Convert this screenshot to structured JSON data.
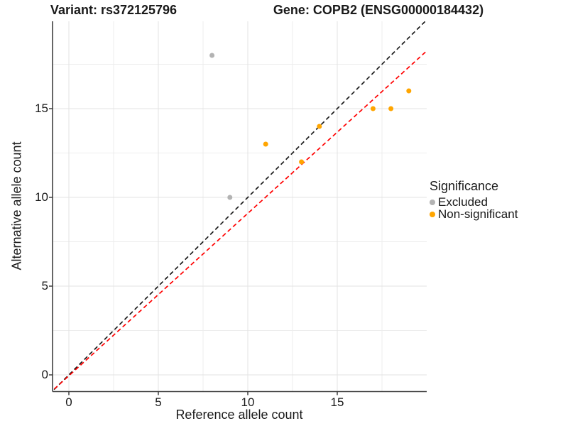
{
  "titles": {
    "variant": "Variant: rs372125796",
    "gene": "Gene: COPB2 (ENSG00000184432)"
  },
  "chart_data": {
    "type": "scatter",
    "xlabel": "Reference allele count",
    "ylabel": "Alternative allele count",
    "xlim": [
      -0.91,
      20
    ],
    "ylim": [
      -0.92,
      20
    ],
    "x_ticks": [
      0,
      5,
      10,
      15
    ],
    "y_ticks": [
      0,
      5,
      10,
      15
    ],
    "x_minor": [
      2.5,
      7.5,
      12.5,
      17.5
    ],
    "y_minor": [
      2.5,
      7.5,
      12.5,
      17.5
    ],
    "grid": "on",
    "legend_position": "right",
    "legend": {
      "title": "Significance",
      "items": [
        {
          "label": "Excluded",
          "color": "#b3b3b3"
        },
        {
          "label": "Non-significant",
          "color": "#ffa500"
        }
      ]
    },
    "series": [
      {
        "name": "Excluded",
        "color": "#b3b3b3",
        "points": [
          [
            8,
            18
          ],
          [
            9,
            10
          ]
        ]
      },
      {
        "name": "Non-significant",
        "color": "#ffa500",
        "points": [
          [
            11,
            13
          ],
          [
            13,
            12
          ],
          [
            14,
            14
          ],
          [
            17,
            15
          ],
          [
            18,
            15
          ],
          [
            19,
            16
          ]
        ]
      }
    ],
    "lines": [
      {
        "name": "identity-line",
        "color": "#1a1a1a",
        "style": "dashed",
        "slope": 1,
        "intercept": 0
      },
      {
        "name": "fit-line",
        "color": "#ff0000",
        "style": "dashed",
        "slope": 0.915,
        "intercept": -0.05
      }
    ]
  },
  "style_colors": {
    "grid_major": "#e3e3e3",
    "grid_minor": "#ededed",
    "axis_line": "#404040",
    "tick_mark": "#333333"
  }
}
